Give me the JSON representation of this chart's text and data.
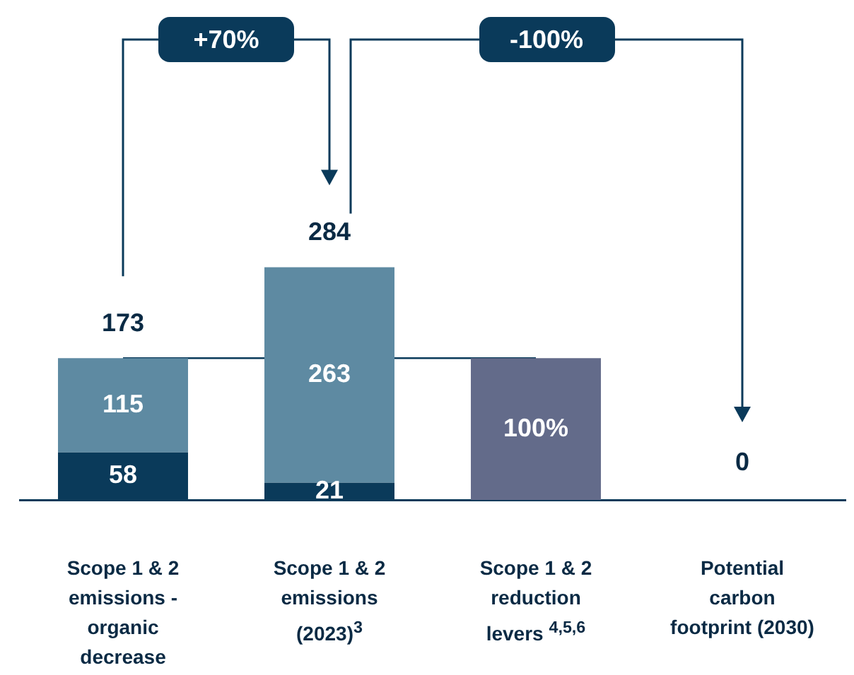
{
  "chart_data": {
    "type": "bar",
    "stacked": true,
    "categories": [
      "Scope 1 & 2 emissions - organic decrease",
      "Scope 1 & 2 emissions (2023)$^{3}$",
      "Scope 1 & 2 reduction levers $^{4,5,6}$",
      "Potential carbon footprint (2030)"
    ],
    "series": [
      {
        "color": "#0a3a5a",
        "values": [
          58,
          21,
          null,
          0
        ],
        "value_labels": [
          "58",
          "21",
          null,
          "0"
        ]
      },
      {
        "color": "#5e8aa2",
        "values": [
          115,
          263,
          null,
          null
        ],
        "value_labels": [
          "115",
          "263",
          null,
          null
        ]
      },
      {
        "color": "#636b8a",
        "values": [
          null,
          null,
          173,
          null
        ]
      }
    ],
    "totals": [
      "173",
      "284",
      null,
      null
    ],
    "ref_lines": [
      {
        "axis": "y",
        "value": 173,
        "color": "#0a3a5a"
      }
    ],
    "annotations": [
      "+70%",
      "-100%",
      "100%"
    ]
  }
}
